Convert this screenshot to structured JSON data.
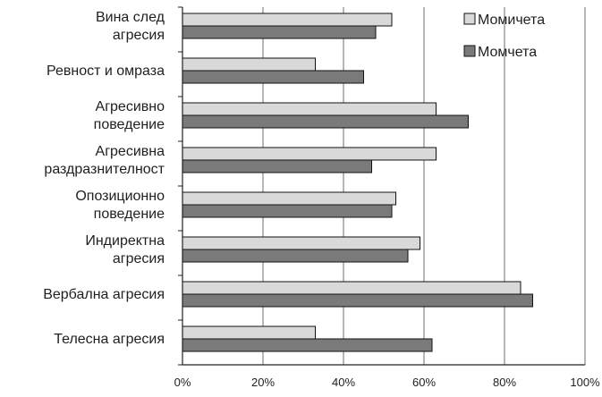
{
  "chart_data": {
    "type": "bar",
    "orientation": "horizontal",
    "categories": [
      [
        "Вина след",
        "агресия"
      ],
      [
        "Ревност и омраза"
      ],
      [
        "Агресивно",
        "поведение"
      ],
      [
        "Агресивна",
        "раздразнителност"
      ],
      [
        "Опозиционно",
        "поведение"
      ],
      [
        "Индиректна",
        "агресия"
      ],
      [
        "Вербална агресия"
      ],
      [
        "Телесна агресия"
      ]
    ],
    "series": [
      {
        "name": "Момичета",
        "color": "#d9d9d9",
        "values": [
          52,
          33,
          63,
          63,
          53,
          59,
          84,
          33
        ]
      },
      {
        "name": "Момчета",
        "color": "#7a7a7a",
        "values": [
          48,
          45,
          71,
          47,
          52,
          56,
          87,
          62
        ]
      }
    ],
    "xlim": [
      0,
      100
    ],
    "xticks": [
      "0%",
      "20%",
      "40%",
      "60%",
      "80%",
      "100%"
    ],
    "grid": true,
    "legend_position": "top-right"
  }
}
